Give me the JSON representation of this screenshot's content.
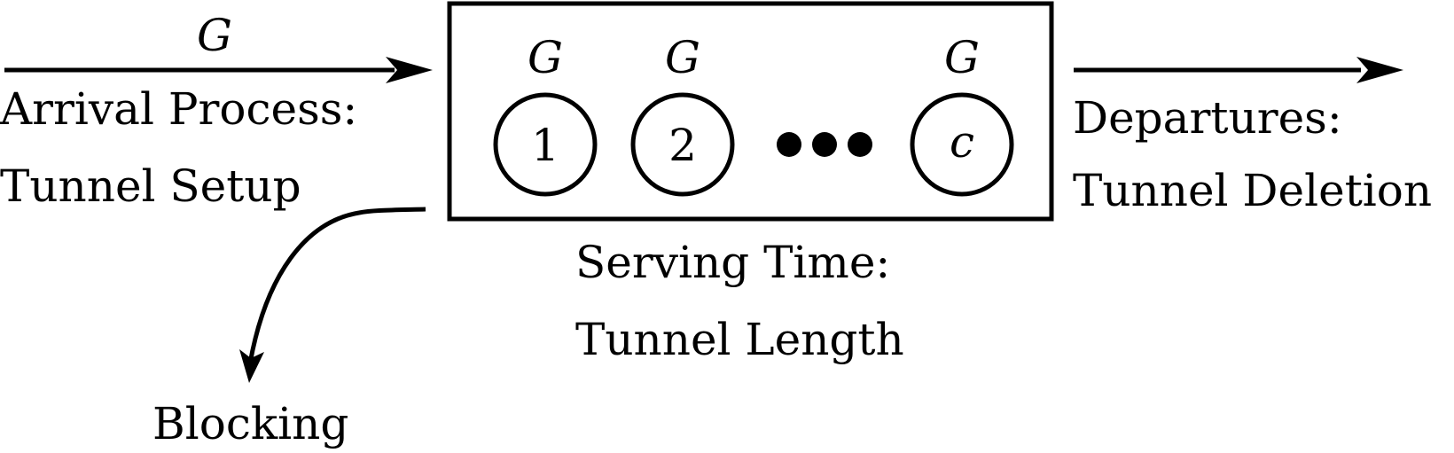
{
  "arrival": {
    "distribution": "G",
    "label_line1": "Arrival Process:",
    "label_line2": "Tunnel Setup"
  },
  "servers": [
    {
      "distribution": "G",
      "label": "1"
    },
    {
      "distribution": "G",
      "label": "2"
    },
    {
      "distribution": "G",
      "label": "c"
    }
  ],
  "departures": {
    "label_line1": "Departures:",
    "label_line2": "Tunnel Deletion"
  },
  "serving": {
    "label_line1": "Serving Time:",
    "label_line2": "Tunnel Length"
  },
  "blocking": {
    "label": "Blocking"
  },
  "colors": {
    "stroke": "#000000",
    "background": "#ffffff"
  }
}
